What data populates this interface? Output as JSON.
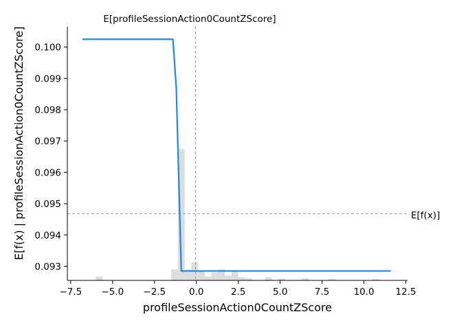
{
  "chart_data": {
    "type": "line",
    "xlabel": "profileSessionAction0CountZScore",
    "ylabel": "E[f(x) | profileSessionAction0CountZScore]",
    "xlim": [
      -7.7,
      12.6
    ],
    "ylim": [
      0.09255,
      0.10065
    ],
    "xticks": [
      -7.5,
      -5.0,
      -2.5,
      0.0,
      2.5,
      5.0,
      7.5,
      10.0,
      12.5
    ],
    "xtick_labels": [
      "−7.5",
      "−5.0",
      "−2.5",
      "0.0",
      "2.5",
      "5.0",
      "7.5",
      "10.0",
      "12.5"
    ],
    "yticks": [
      0.093,
      0.094,
      0.095,
      0.096,
      0.097,
      0.098,
      0.099,
      0.1
    ],
    "ytick_labels": [
      "0.093",
      "0.094",
      "0.095",
      "0.096",
      "0.097",
      "0.098",
      "0.099",
      "0.100"
    ],
    "series": [
      {
        "color": "#1E88E5",
        "x": [
          -6.8,
          -1.4,
          -1.2,
          -0.9,
          11.6
        ],
        "y": [
          0.10025,
          0.10025,
          0.0987,
          0.09285,
          0.09285
        ]
      }
    ],
    "histogram": {
      "color": "#dddddd",
      "bin_width": 0.4,
      "bins": [
        {
          "x": -6.0,
          "h": 0.22
        },
        {
          "x": -1.5,
          "h": 0.61
        },
        {
          "x": -1.1,
          "h": 7.3
        },
        {
          "x": -0.7,
          "h": 0.6
        },
        {
          "x": -0.3,
          "h": 1.0
        },
        {
          "x": 0.1,
          "h": 0.55
        },
        {
          "x": 0.5,
          "h": 0.22
        },
        {
          "x": 0.9,
          "h": 0.45
        },
        {
          "x": 1.3,
          "h": 0.62
        },
        {
          "x": 1.7,
          "h": 0.28
        },
        {
          "x": 2.1,
          "h": 0.48
        },
        {
          "x": 2.5,
          "h": 0.18
        },
        {
          "x": 2.9,
          "h": 0.12
        },
        {
          "x": 4.1,
          "h": 0.18
        },
        {
          "x": 4.9,
          "h": 0.1
        },
        {
          "x": 6.3,
          "h": 0.12
        },
        {
          "x": 7.9,
          "h": 0.08
        },
        {
          "x": 10.5,
          "h": 0.08
        }
      ],
      "max_h": 8.0
    },
    "expected_value": {
      "x": -0.05,
      "x_label": "E[profileSessionAction0CountZScore]"
    },
    "expected_output": {
      "y": 0.09468,
      "label": "E[f(x)]"
    },
    "grid": false,
    "legend": "none"
  }
}
